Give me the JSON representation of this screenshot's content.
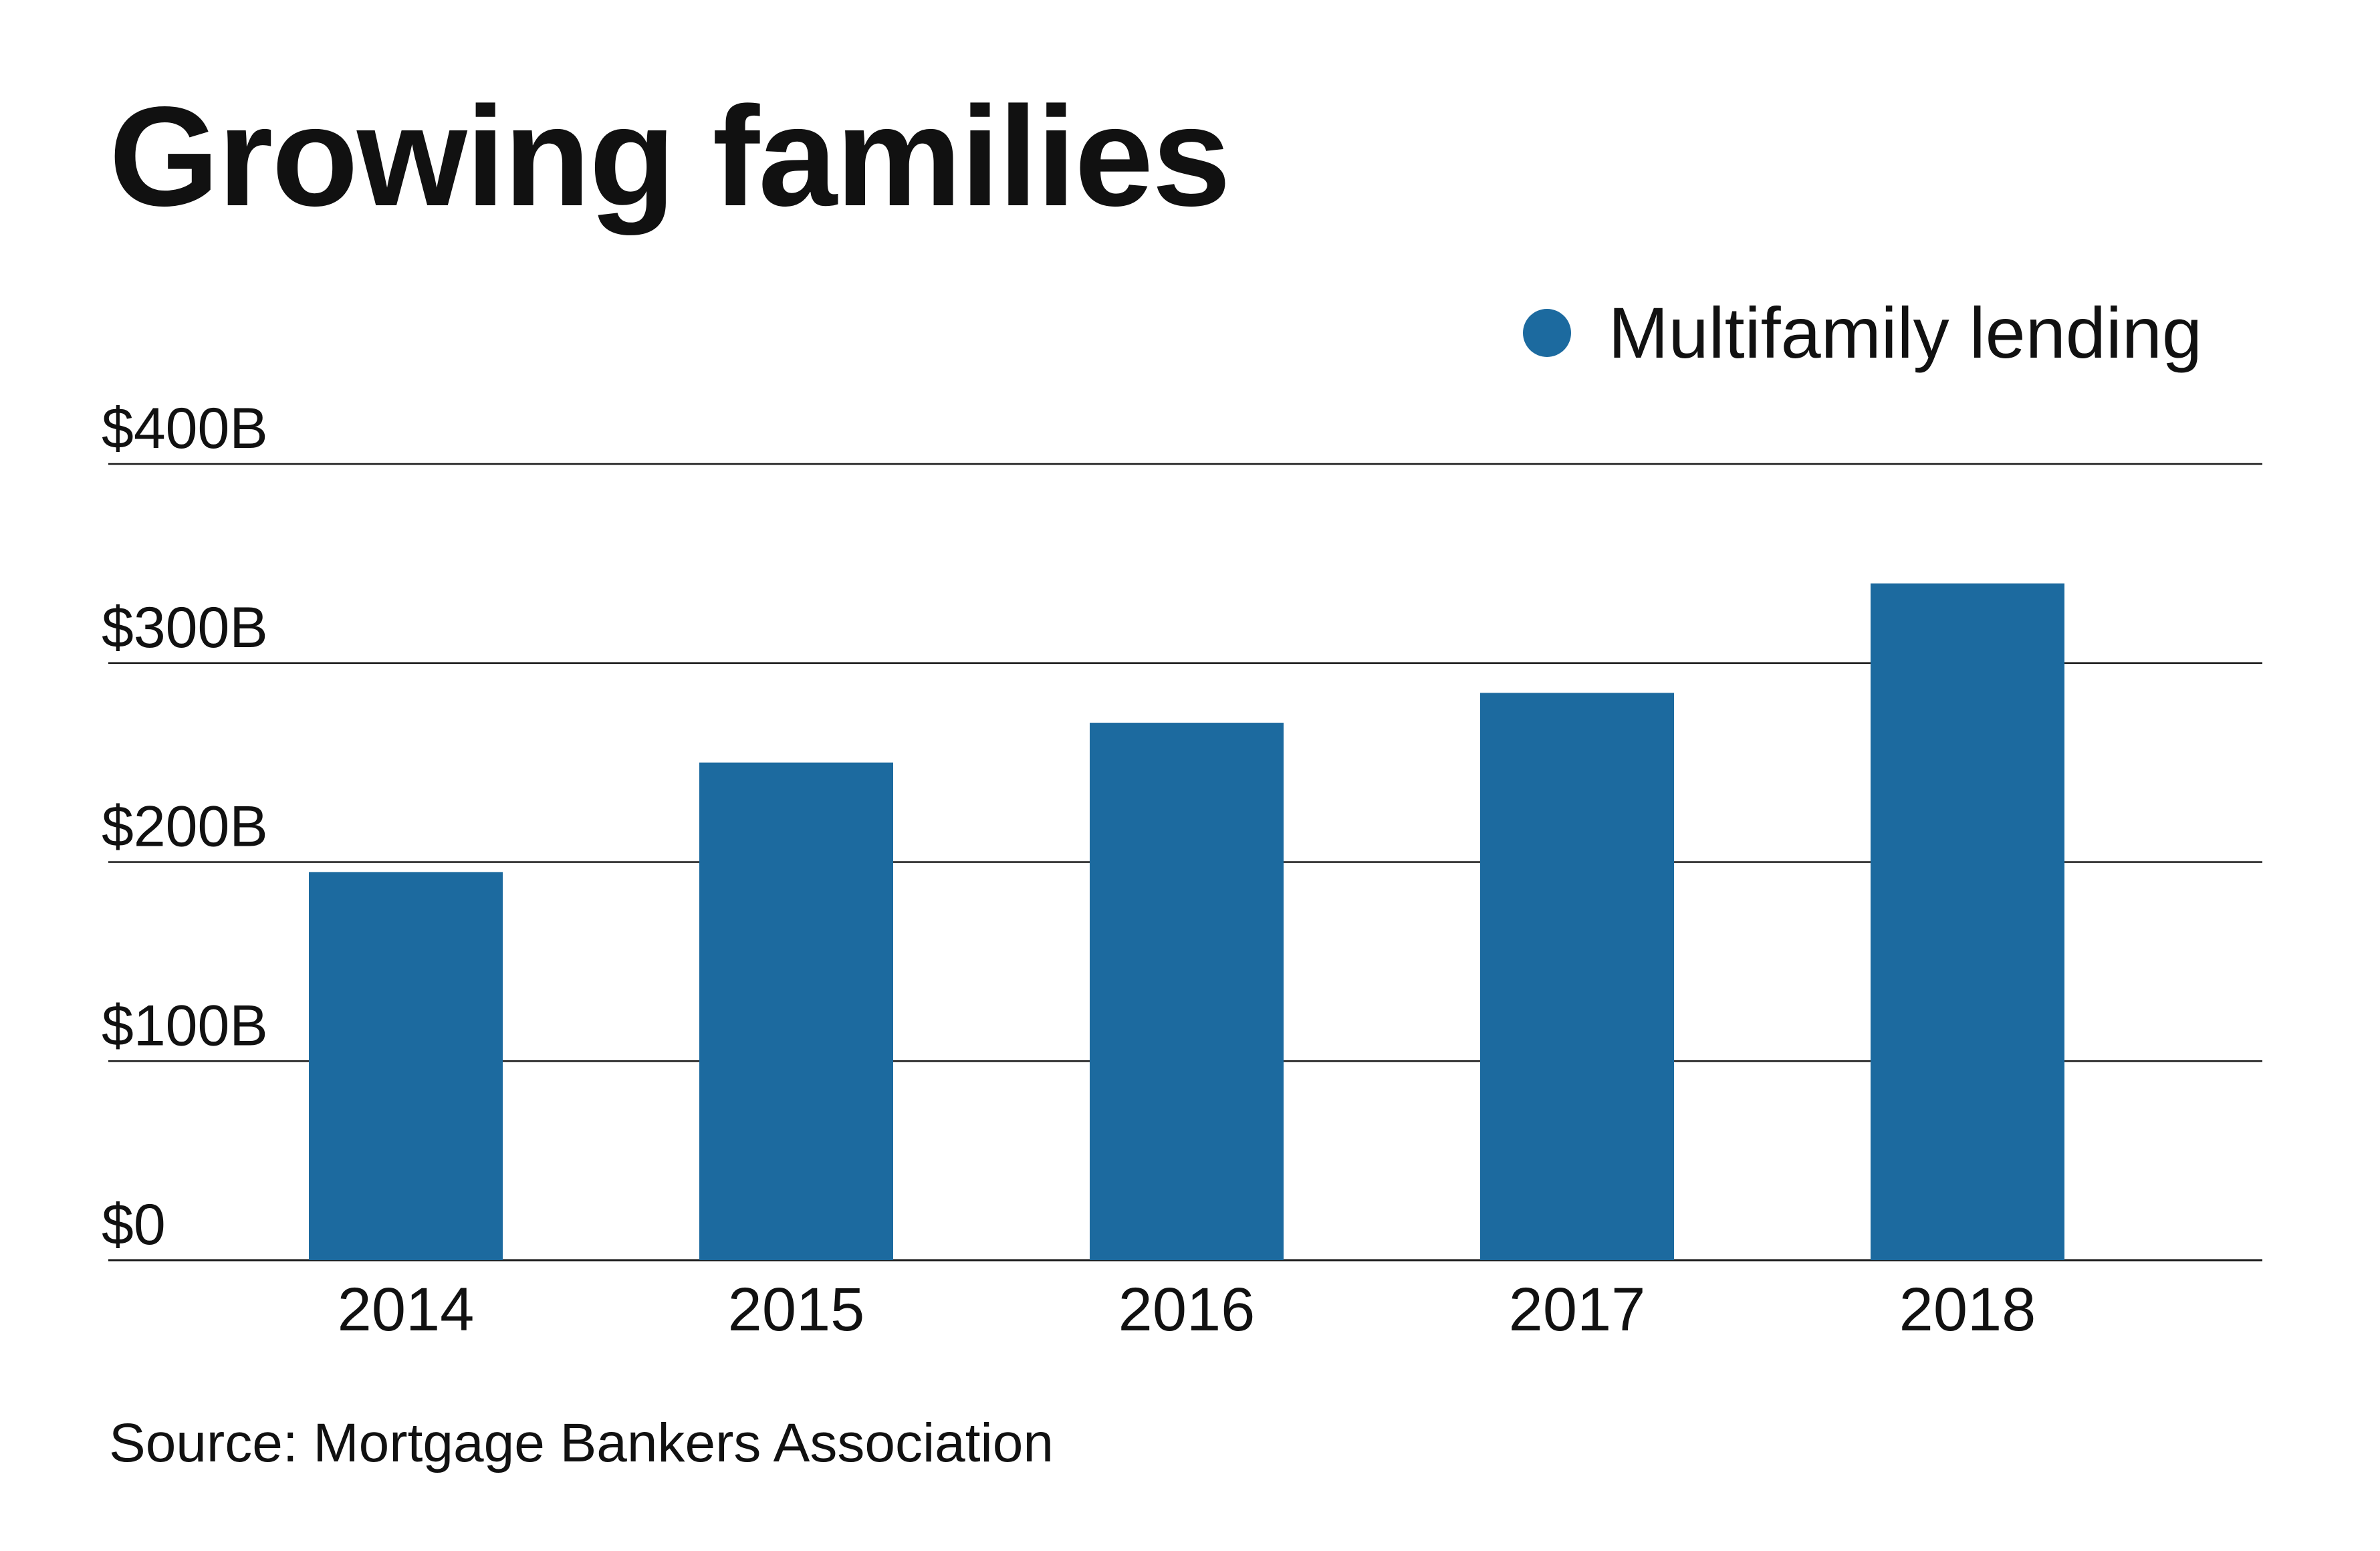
{
  "chart_data": {
    "type": "bar",
    "title": "Growing families",
    "categories": [
      "2014",
      "2015",
      "2016",
      "2017",
      "2018"
    ],
    "series": [
      {
        "name": "Multifamily lending",
        "values": [
          195,
          250,
          270,
          285,
          340
        ],
        "color": "#1c6a9f"
      }
    ],
    "yticks": [
      "$0",
      "$100B",
      "$200B",
      "$300B",
      "$400B"
    ],
    "ylim": [
      0,
      400
    ],
    "xlabel": "",
    "ylabel": "",
    "grid": true,
    "legend_position": "top-right"
  },
  "source": "Source: Mortgage Bankers Association"
}
